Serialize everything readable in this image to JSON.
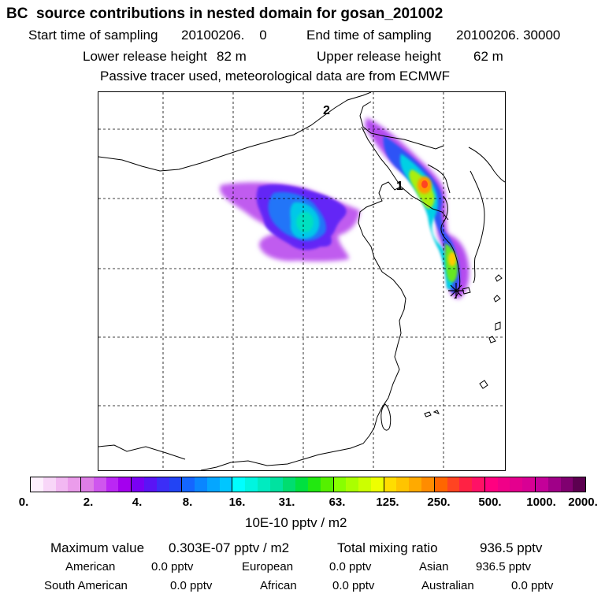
{
  "title": "BC  source contributions in nested domain for gosan_201002",
  "header": {
    "start_label": "Start time of sampling",
    "start_value": "20100206.    0",
    "end_label": "End time of sampling",
    "end_value": "20100206. 30000",
    "lower_label": "Lower release height",
    "lower_value": "82 m",
    "upper_label": "Upper release height",
    "upper_value": "62 m",
    "note": "Passive tracer used, meteorological data are from ECMWF"
  },
  "map": {
    "label_1": "1",
    "label_2": "2",
    "receptor_marker": "asterisk-marker"
  },
  "colorbar": {
    "ticks": [
      "0.",
      "2.",
      "4.",
      "8.",
      "16.",
      "31.",
      "63.",
      "125.",
      "250.",
      "500.",
      "1000.",
      "2000."
    ],
    "colors": [
      [
        "#fdf0fd",
        "#f8d6f8",
        "#f2b8f2",
        "#eb9ceb"
      ],
      [
        "#de7ee6",
        "#cf56ee",
        "#bb27f4",
        "#a400ee"
      ],
      [
        "#7a00f4",
        "#5a14f5",
        "#3c2ef7",
        "#2244f4"
      ],
      [
        "#1466ff",
        "#0a86ff",
        "#05a6ff",
        "#00c6ff"
      ],
      [
        "#00ffff",
        "#00f5e0",
        "#00ebc0",
        "#00e2a0"
      ],
      [
        "#00dd70",
        "#00e040",
        "#22e810",
        "#55f000"
      ],
      [
        "#88ff00",
        "#aaff00",
        "#ccff00",
        "#eeff00"
      ],
      [
        "#ffdd00",
        "#ffc400",
        "#ffaa00",
        "#ff8c00"
      ],
      [
        "#ff6600",
        "#ff4422",
        "#ff2244",
        "#ff1166"
      ],
      [
        "#ff0080",
        "#f00088",
        "#e4008e",
        "#d80094"
      ],
      [
        "#c40099",
        "#a00088",
        "#800070",
        "#5c0050"
      ]
    ],
    "unit_label": "10E-10 pptv / m2"
  },
  "stats": {
    "max_label": "Maximum value",
    "max_value": "0.303E-07 pptv / m2",
    "total_label": "Total mixing ratio",
    "total_value": "936.5 pptv"
  },
  "sources": [
    {
      "name": "American",
      "value": "0.0 pptv"
    },
    {
      "name": "European",
      "value": "0.0 pptv"
    },
    {
      "name": "Asian",
      "value": "936.5 pptv"
    },
    {
      "name": "South American",
      "value": "0.0 pptv"
    },
    {
      "name": "African",
      "value": "0.0 pptv"
    },
    {
      "name": "Australian",
      "value": "0.0 pptv"
    }
  ]
}
